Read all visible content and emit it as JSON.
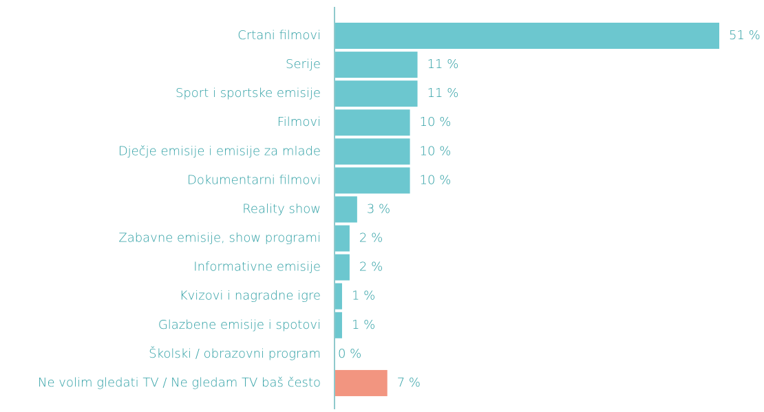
{
  "chart_data": {
    "type": "bar",
    "orientation": "horizontal",
    "categories": [
      "Crtani filmovi",
      "Serije",
      "Sport i sportske emisije",
      "Filmovi",
      "Dječje emisije i emisije za mlade",
      "Dokumentarni filmovi",
      "Reality show",
      "Zabavne emisije, show programi",
      "Informativne emisije",
      "Kvizovi i nagradne igre",
      "Glazbene emisije i spotovi",
      "Školski / obrazovni program",
      "Ne volim gledati TV / Ne gledam TV baš često"
    ],
    "values": [
      51,
      11,
      11,
      10,
      10,
      10,
      3,
      2,
      2,
      1,
      1,
      0,
      7
    ],
    "value_labels": [
      "51 %",
      "11 %",
      "11 %",
      "10 %",
      "10 %",
      "10 %",
      "3 %",
      "2 %",
      "2 %",
      "1 %",
      "1 %",
      "0 %",
      "7 %"
    ],
    "colors": [
      "#6cc7cf",
      "#6cc7cf",
      "#6cc7cf",
      "#6cc7cf",
      "#6cc7cf",
      "#6cc7cf",
      "#6cc7cf",
      "#6cc7cf",
      "#6cc7cf",
      "#6cc7cf",
      "#6cc7cf",
      "#6cc7cf",
      "#f29580"
    ]
  }
}
